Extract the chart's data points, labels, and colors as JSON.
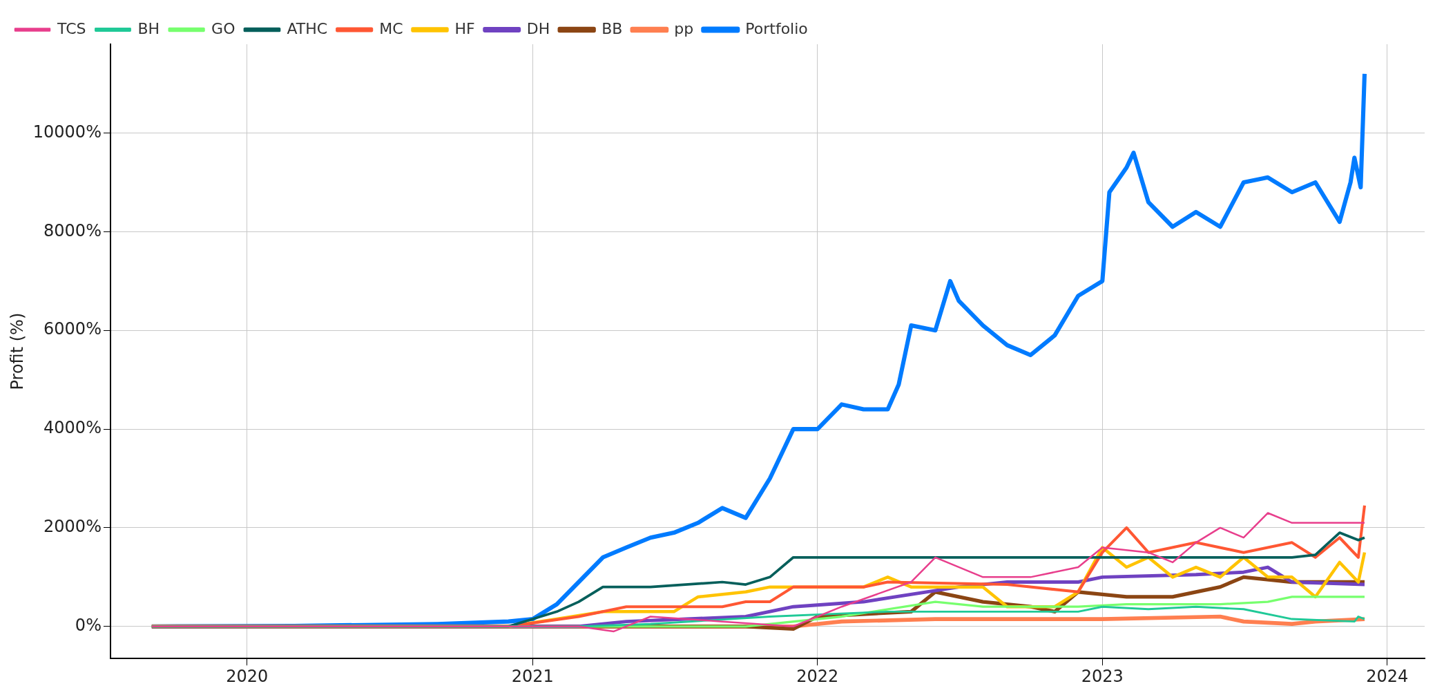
{
  "chart_data": {
    "type": "line",
    "ylabel": "Profit (%)",
    "xlim": [
      "2019-07-10",
      "2024-02-18"
    ],
    "xticks": [
      "2020",
      "2021",
      "2022",
      "2023",
      "2024"
    ],
    "ylim": [
      -650,
      11800
    ],
    "yticks": [
      {
        "value": 0,
        "label": "0%"
      },
      {
        "value": 2000,
        "label": "2000%"
      },
      {
        "value": 4000,
        "label": "4000%"
      },
      {
        "value": 6000,
        "label": "6000%"
      },
      {
        "value": 8000,
        "label": "8000%"
      },
      {
        "value": 10000,
        "label": "10000%"
      }
    ],
    "grid": true,
    "legend": "top left",
    "line_style": "solid",
    "marker": "none",
    "series": [
      {
        "name": "TCS",
        "color": "#e83e8c",
        "x": [
          "2019-09-01",
          "2021-03-01",
          "2021-04-15",
          "2021-06-01",
          "2021-09-01",
          "2021-12-01",
          "2022-02-01",
          "2022-05-01",
          "2022-06-01",
          "2022-08-01",
          "2022-10-01",
          "2022-12-01",
          "2023-01-01",
          "2023-03-01",
          "2023-04-01",
          "2023-05-01",
          "2023-06-01",
          "2023-07-01",
          "2023-08-01",
          "2023-09-01",
          "2023-12-03"
        ],
        "values": [
          0,
          0,
          -100,
          200,
          100,
          0,
          400,
          900,
          1400,
          1000,
          1000,
          1200,
          1600,
          1500,
          1300,
          1700,
          2000,
          1800,
          2300,
          2100,
          2100
        ]
      },
      {
        "name": "BH",
        "color": "#20c997",
        "x": [
          "2019-09-01",
          "2021-03-01",
          "2021-06-01",
          "2021-11-01",
          "2022-04-01",
          "2022-08-01",
          "2022-12-01",
          "2023-01-01",
          "2023-03-01",
          "2023-05-01",
          "2023-07-01",
          "2023-09-01",
          "2023-11-20",
          "2023-11-25",
          "2023-12-03"
        ],
        "values": [
          0,
          0,
          50,
          200,
          300,
          300,
          300,
          400,
          350,
          400,
          350,
          150,
          100,
          200,
          150
        ]
      },
      {
        "name": "GO",
        "color": "#77ff6e",
        "x": [
          "2019-09-01",
          "2021-10-01",
          "2022-02-01",
          "2022-06-01",
          "2022-08-01",
          "2022-12-01",
          "2023-02-01",
          "2023-06-01",
          "2023-08-01",
          "2023-09-01",
          "2023-12-03"
        ],
        "values": [
          0,
          0,
          200,
          500,
          400,
          400,
          450,
          450,
          500,
          600,
          600
        ]
      },
      {
        "name": "ATHC",
        "color": "#055f5b",
        "x": [
          "2019-09-01",
          "2020-12-01",
          "2021-02-01",
          "2021-03-01",
          "2021-04-01",
          "2021-06-01",
          "2021-09-01",
          "2021-10-01",
          "2021-11-01",
          "2021-12-01",
          "2023-01-01",
          "2023-09-01",
          "2023-10-01",
          "2023-11-01",
          "2023-11-25",
          "2023-12-03"
        ],
        "values": [
          0,
          0,
          300,
          500,
          800,
          800,
          900,
          850,
          1000,
          1400,
          1400,
          1400,
          1450,
          1900,
          1750,
          1800
        ]
      },
      {
        "name": "MC",
        "color": "#ff5733",
        "x": [
          "2019-09-01",
          "2020-12-01",
          "2021-03-01",
          "2021-05-01",
          "2021-09-01",
          "2021-10-01",
          "2021-11-01",
          "2021-12-01",
          "2022-03-01",
          "2022-04-01",
          "2022-09-01",
          "2022-12-01",
          "2023-01-01",
          "2023-02-01",
          "2023-03-01",
          "2023-05-01",
          "2023-07-01",
          "2023-09-01",
          "2023-10-01",
          "2023-11-01",
          "2023-11-25",
          "2023-12-03"
        ],
        "values": [
          0,
          0,
          200,
          400,
          400,
          500,
          500,
          800,
          800,
          900,
          850,
          700,
          1500,
          2000,
          1500,
          1700,
          1500,
          1700,
          1400,
          1800,
          1400,
          2450
        ]
      },
      {
        "name": "HF",
        "color": "#ffc300",
        "x": [
          "2019-09-01",
          "2020-12-01",
          "2021-02-01",
          "2021-04-01",
          "2021-07-01",
          "2021-08-01",
          "2021-10-01",
          "2021-11-01",
          "2022-03-01",
          "2022-04-01",
          "2022-05-01",
          "2022-08-01",
          "2022-09-01",
          "2022-11-01",
          "2022-12-01",
          "2023-01-01",
          "2023-02-01",
          "2023-03-01",
          "2023-04-01",
          "2023-05-01",
          "2023-06-01",
          "2023-07-01",
          "2023-08-01",
          "2023-09-01",
          "2023-10-01",
          "2023-11-01",
          "2023-11-25",
          "2023-12-03"
        ],
        "values": [
          0,
          0,
          150,
          300,
          300,
          600,
          700,
          800,
          800,
          1000,
          800,
          800,
          400,
          400,
          700,
          1600,
          1200,
          1400,
          1000,
          1200,
          1000,
          1400,
          1000,
          1000,
          600,
          1300,
          900,
          1500
        ]
      },
      {
        "name": "DH",
        "color": "#6f42c1",
        "x": [
          "2019-09-01",
          "2021-03-01",
          "2021-05-01",
          "2021-10-01",
          "2021-12-01",
          "2022-03-01",
          "2022-07-01",
          "2022-09-01",
          "2022-12-01",
          "2023-01-01",
          "2023-05-01",
          "2023-07-01",
          "2023-08-01",
          "2023-09-01",
          "2023-12-03"
        ],
        "values": [
          0,
          0,
          100,
          200,
          400,
          500,
          800,
          900,
          900,
          1000,
          1050,
          1100,
          1200,
          900,
          850
        ]
      },
      {
        "name": "BB",
        "color": "#8b4513",
        "x": [
          "2019-09-01",
          "2021-10-01",
          "2021-12-01",
          "2022-01-01",
          "2022-05-01",
          "2022-06-01",
          "2022-08-01",
          "2022-10-01",
          "2022-11-01",
          "2022-12-01",
          "2023-02-01",
          "2023-04-01",
          "2023-06-01",
          "2023-07-01",
          "2023-09-01",
          "2023-12-03"
        ],
        "values": [
          0,
          0,
          -50,
          200,
          300,
          700,
          500,
          400,
          300,
          700,
          600,
          600,
          800,
          1000,
          900,
          900
        ]
      },
      {
        "name": "pp",
        "color": "#ff7f50",
        "x": [
          "2019-09-01",
          "2021-12-01",
          "2022-02-01",
          "2022-06-01",
          "2023-01-01",
          "2023-06-01",
          "2023-07-01",
          "2023-09-01",
          "2023-10-01",
          "2023-12-03"
        ],
        "values": [
          0,
          0,
          100,
          150,
          150,
          200,
          100,
          50,
          100,
          150
        ]
      },
      {
        "name": "Portfolio",
        "color": "#007bff",
        "x": [
          "2019-09-01",
          "2020-03-01",
          "2020-09-01",
          "2020-12-01",
          "2021-01-01",
          "2021-02-01",
          "2021-03-01",
          "2021-04-01",
          "2021-05-01",
          "2021-06-01",
          "2021-07-01",
          "2021-08-01",
          "2021-09-01",
          "2021-10-01",
          "2021-11-01",
          "2021-12-01",
          "2022-01-01",
          "2022-02-01",
          "2022-03-01",
          "2022-04-01",
          "2022-04-15",
          "2022-05-01",
          "2022-06-01",
          "2022-06-20",
          "2022-07-01",
          "2022-08-01",
          "2022-09-01",
          "2022-10-01",
          "2022-11-01",
          "2022-12-01",
          "2023-01-01",
          "2023-01-10",
          "2023-02-01",
          "2023-02-10",
          "2023-03-01",
          "2023-04-01",
          "2023-05-01",
          "2023-06-01",
          "2023-07-01",
          "2023-08-01",
          "2023-09-01",
          "2023-10-01",
          "2023-11-01",
          "2023-11-15",
          "2023-11-20",
          "2023-11-28",
          "2023-12-03"
        ],
        "values": [
          0,
          10,
          50,
          100,
          150,
          450,
          900,
          1400,
          1600,
          1800,
          1900,
          2100,
          2400,
          2200,
          3000,
          4000,
          4000,
          4500,
          4400,
          4400,
          4900,
          6100,
          6000,
          7000,
          6600,
          6100,
          5700,
          5500,
          5900,
          6700,
          7000,
          8800,
          9300,
          9600,
          8600,
          8100,
          8400,
          8100,
          9000,
          9100,
          8800,
          9000,
          8200,
          9000,
          9500,
          8900,
          11200
        ]
      }
    ]
  }
}
